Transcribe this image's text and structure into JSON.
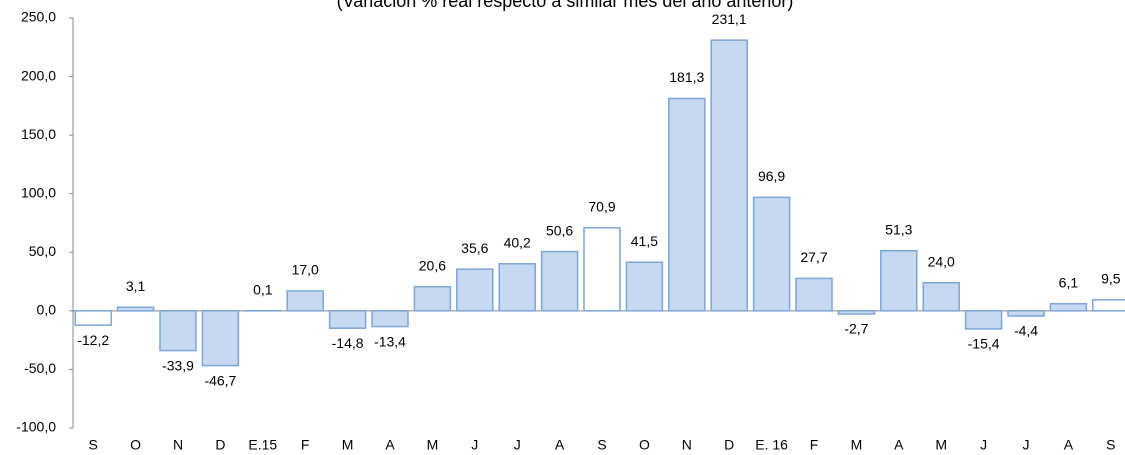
{
  "chart_data": {
    "type": "bar",
    "subtitle": "(Variación % real respecto a similar mes del año anterior)",
    "categories": [
      "S",
      "O",
      "N",
      "D",
      "E.15",
      "F",
      "M",
      "A",
      "M",
      "J",
      "J",
      "A",
      "S",
      "O",
      "N",
      "D",
      "E. 16",
      "F",
      "M",
      "A",
      "M",
      "J",
      "J",
      "A",
      "S"
    ],
    "values": [
      -12.2,
      3.1,
      -33.9,
      -46.7,
      0.1,
      17.0,
      -14.8,
      -13.4,
      20.6,
      35.6,
      40.2,
      50.6,
      70.9,
      41.5,
      181.3,
      231.1,
      96.9,
      27.7,
      -2.7,
      51.3,
      24.0,
      -15.4,
      -4.4,
      6.1,
      9.5
    ],
    "value_labels": [
      "-12,2",
      "3,1",
      "-33,9",
      "-46,7",
      "0,1",
      "17,0",
      "-14,8",
      "-13,4",
      "20,6",
      "35,6",
      "40,2",
      "50,6",
      "70,9",
      "41,5",
      "181,3",
      "231,1",
      "96,9",
      "27,7",
      "-2,7",
      "51,3",
      "24,0",
      "-15,4",
      "-4,4",
      "6,1",
      "9,5"
    ],
    "colors": [
      "#ffffff",
      "#c6d9f1",
      "#c6d9f1",
      "#c6d9f1",
      "#c6d9f1",
      "#c6d9f1",
      "#c6d9f1",
      "#c6d9f1",
      "#c6d9f1",
      "#c6d9f1",
      "#c6d9f1",
      "#c6d9f1",
      "#ffffff",
      "#c6d9f1",
      "#c6d9f1",
      "#c6d9f1",
      "#c6d9f1",
      "#c6d9f1",
      "#c6d9f1",
      "#c6d9f1",
      "#c6d9f1",
      "#c6d9f1",
      "#c6d9f1",
      "#c6d9f1",
      "#ffffff"
    ],
    "border_color": "#7ea6d8",
    "ylim": [
      -100,
      250
    ],
    "yticks": [
      {
        "value": -100,
        "label": "-100,0"
      },
      {
        "value": -50,
        "label": "-50,0"
      },
      {
        "value": 0,
        "label": "0,0"
      },
      {
        "value": 50,
        "label": "50,0"
      },
      {
        "value": 100,
        "label": "100,0"
      },
      {
        "value": 150,
        "label": "150,0"
      },
      {
        "value": 200,
        "label": "200,0"
      },
      {
        "value": 250,
        "label": "250,0"
      }
    ],
    "grid": false
  }
}
